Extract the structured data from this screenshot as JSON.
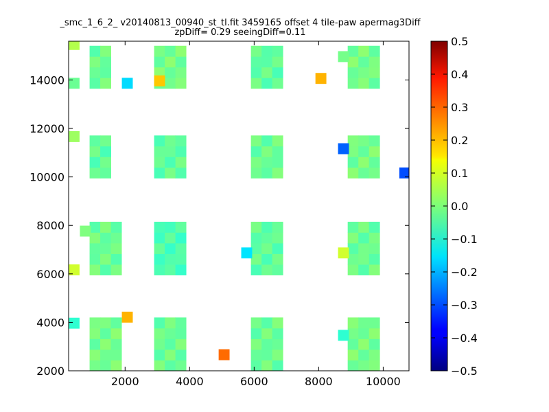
{
  "chart_data": {
    "type": "heatmap",
    "title_lines": [
      "_smc_1_6_2_ v20140813_00940_st_tl.fit 3459165 offset 4 tile-paw apermag3Diff",
      "zpDiff= 0.29 seeingDiff=0.11"
    ],
    "xlabel": "",
    "ylabel": "",
    "xlim": [
      250,
      10800
    ],
    "ylim": [
      2000,
      15600
    ],
    "xticks": [
      2000,
      4000,
      6000,
      8000,
      10000
    ],
    "yticks": [
      2000,
      4000,
      6000,
      8000,
      10000,
      12000,
      14000
    ],
    "grid": false,
    "colormap": "jet",
    "clim": [
      -0.5,
      0.5
    ],
    "colorbar_ticks": [
      "0.5",
      "0.4",
      "0.3",
      "0.2",
      "0.1",
      "0.0",
      "−0.1",
      "−0.2",
      "−0.3",
      "−0.4",
      "−0.5"
    ],
    "cell_width": 330,
    "cell_height": 440,
    "blocks": [
      {
        "x0": 900,
        "cols": 3,
        "y0": 2000,
        "rows": 5,
        "value": -0.01
      },
      {
        "x0": 2900,
        "cols": 3,
        "y0": 2000,
        "rows": 5,
        "value": -0.02
      },
      {
        "x0": 5900,
        "cols": 3,
        "y0": 2000,
        "rows": 5,
        "value": -0.02
      },
      {
        "x0": 8900,
        "cols": 3,
        "y0": 2000,
        "rows": 5,
        "value": -0.01
      },
      {
        "x0": 900,
        "cols": 3,
        "y0": 5950,
        "rows": 5,
        "value": -0.02
      },
      {
        "x0": 2900,
        "cols": 3,
        "y0": 5950,
        "rows": 5,
        "value": -0.05
      },
      {
        "x0": 5900,
        "cols": 3,
        "y0": 5950,
        "rows": 5,
        "value": -0.03
      },
      {
        "x0": 8900,
        "cols": 3,
        "y0": 5950,
        "rows": 5,
        "value": -0.02
      },
      {
        "x0": 900,
        "cols": 2,
        "y0": 9950,
        "rows": 4,
        "value": -0.03
      },
      {
        "x0": 2900,
        "cols": 3,
        "y0": 9950,
        "rows": 4,
        "value": -0.03
      },
      {
        "x0": 5900,
        "cols": 3,
        "y0": 9950,
        "rows": 4,
        "value": -0.02
      },
      {
        "x0": 8900,
        "cols": 3,
        "y0": 9950,
        "rows": 4,
        "value": -0.01
      },
      {
        "x0": 900,
        "cols": 2,
        "y0": 13650,
        "rows": 4,
        "value": -0.02
      },
      {
        "x0": 2900,
        "cols": 3,
        "y0": 13650,
        "rows": 4,
        "value": -0.01
      },
      {
        "x0": 5900,
        "cols": 3,
        "y0": 13650,
        "rows": 4,
        "value": -0.03
      },
      {
        "x0": 8900,
        "cols": 3,
        "y0": 13650,
        "rows": 4,
        "value": -0.01
      }
    ],
    "points": [
      {
        "x": 250,
        "y": 3750,
        "value": -0.08
      },
      {
        "x": 8600,
        "y": 3250,
        "value": -0.08
      },
      {
        "x": 250,
        "y": 5950,
        "value": 0.08
      },
      {
        "x": 5600,
        "y": 6650,
        "value": -0.15
      },
      {
        "x": 8600,
        "y": 6650,
        "value": 0.08
      },
      {
        "x": 600,
        "y": 7550,
        "value": 0.0
      },
      {
        "x": 250,
        "y": 11450,
        "value": 0.03
      },
      {
        "x": 8600,
        "y": 10950,
        "value": -0.28
      },
      {
        "x": 10500,
        "y": 9950,
        "value": -0.3
      },
      {
        "x": 250,
        "y": 13650,
        "value": -0.02
      },
      {
        "x": 250,
        "y": 15250,
        "value": 0.05
      },
      {
        "x": 8600,
        "y": 14750,
        "value": -0.01
      },
      {
        "x": 1900,
        "y": 4000,
        "value": 0.2
      },
      {
        "x": 4900,
        "y": 2450,
        "value": 0.27
      },
      {
        "x": 2900,
        "y": 13750,
        "value": 0.18
      },
      {
        "x": 7900,
        "y": 13850,
        "value": 0.2
      },
      {
        "x": 1900,
        "y": 13650,
        "value": -0.16
      }
    ]
  }
}
